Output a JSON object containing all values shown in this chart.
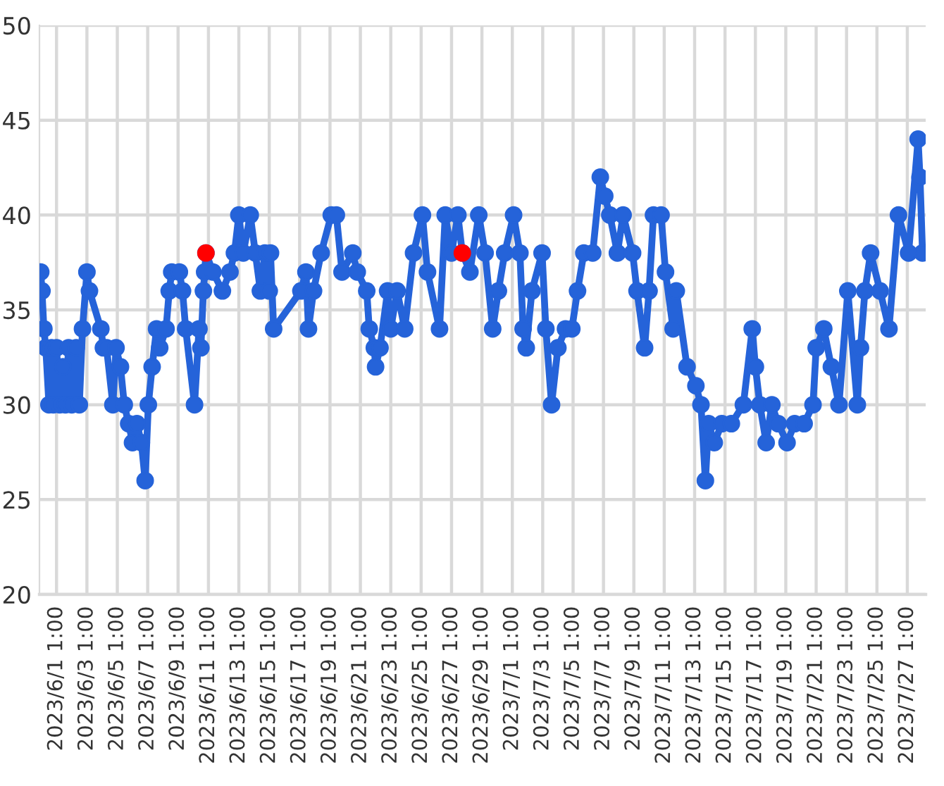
{
  "chart_data": {
    "type": "line",
    "xlim": [
      "2023-05-30T22:00",
      "2023-07-28T06:00"
    ],
    "ylim": [
      20,
      50
    ],
    "yticks": [
      20,
      25,
      30,
      35,
      40,
      45,
      50
    ],
    "xticks": [
      {
        "value": "2023-06-01T01:00",
        "label": "2023/6/1 1:00"
      },
      {
        "value": "2023-06-03T01:00",
        "label": "2023/6/3 1:00"
      },
      {
        "value": "2023-06-05T01:00",
        "label": "2023/6/5 1:00"
      },
      {
        "value": "2023-06-07T01:00",
        "label": "2023/6/7 1:00"
      },
      {
        "value": "2023-06-09T01:00",
        "label": "2023/6/9 1:00"
      },
      {
        "value": "2023-06-11T01:00",
        "label": "2023/6/11 1:00"
      },
      {
        "value": "2023-06-13T01:00",
        "label": "2023/6/13 1:00"
      },
      {
        "value": "2023-06-15T01:00",
        "label": "2023/6/15 1:00"
      },
      {
        "value": "2023-06-17T01:00",
        "label": "2023/6/17 1:00"
      },
      {
        "value": "2023-06-19T01:00",
        "label": "2023/6/19 1:00"
      },
      {
        "value": "2023-06-21T01:00",
        "label": "2023/6/21 1:00"
      },
      {
        "value": "2023-06-23T01:00",
        "label": "2023/6/23 1:00"
      },
      {
        "value": "2023-06-25T01:00",
        "label": "2023/6/25 1:00"
      },
      {
        "value": "2023-06-27T01:00",
        "label": "2023/6/27 1:00"
      },
      {
        "value": "2023-06-29T01:00",
        "label": "2023/6/29 1:00"
      },
      {
        "value": "2023-07-01T01:00",
        "label": "2023/7/1 1:00"
      },
      {
        "value": "2023-07-03T01:00",
        "label": "2023/7/3 1:00"
      },
      {
        "value": "2023-07-05T01:00",
        "label": "2023/7/5 1:00"
      },
      {
        "value": "2023-07-07T01:00",
        "label": "2023/7/7 1:00"
      },
      {
        "value": "2023-07-09T01:00",
        "label": "2023/7/9 1:00"
      },
      {
        "value": "2023-07-11T01:00",
        "label": "2023/7/11 1:00"
      },
      {
        "value": "2023-07-13T01:00",
        "label": "2023/7/13 1:00"
      },
      {
        "value": "2023-07-15T01:00",
        "label": "2023/7/15 1:00"
      },
      {
        "value": "2023-07-17T01:00",
        "label": "2023/7/17 1:00"
      },
      {
        "value": "2023-07-19T01:00",
        "label": "2023/7/19 1:00"
      },
      {
        "value": "2023-07-21T01:00",
        "label": "2023/7/21 1:00"
      },
      {
        "value": "2023-07-23T01:00",
        "label": "2023/7/23 1:00"
      },
      {
        "value": "2023-07-25T01:00",
        "label": "2023/7/25 1:00"
      },
      {
        "value": "2023-07-27T01:00",
        "label": "2023/7/27 1:00"
      }
    ],
    "grid": true,
    "marker": "circle",
    "line_style": "solid",
    "series": [
      {
        "color": "#2563d9",
        "x": [
          "2023-05-31T00:00",
          "2023-05-31T02:00",
          "2023-05-31T05:00",
          "2023-05-31T08:00",
          "2023-05-31T13:00",
          "2023-05-31T17:00",
          "2023-05-31T20:00",
          "2023-06-01T01:00",
          "2023-06-01T06:00",
          "2023-06-01T11:00",
          "2023-06-01T15:00",
          "2023-06-01T20:00",
          "2023-06-02T01:00",
          "2023-06-02T08:00",
          "2023-06-02T13:00",
          "2023-06-02T18:00",
          "2023-06-03T01:00",
          "2023-06-03T05:00",
          "2023-06-03T23:00",
          "2023-06-04T03:00",
          "2023-06-04T08:00",
          "2023-06-04T18:00",
          "2023-06-04T23:00",
          "2023-06-05T06:00",
          "2023-06-05T12:00",
          "2023-06-05T19:00",
          "2023-06-06T01:00",
          "2023-06-06T08:00",
          "2023-06-06T15:00",
          "2023-06-06T21:00",
          "2023-06-07T02:00",
          "2023-06-07T08:00",
          "2023-06-07T15:00",
          "2023-06-07T20:00",
          "2023-06-08T06:00",
          "2023-06-08T11:00",
          "2023-06-08T15:00",
          "2023-06-09T03:00",
          "2023-06-09T08:00",
          "2023-06-09T13:00",
          "2023-06-10T03:00",
          "2023-06-10T10:00",
          "2023-06-10T13:00",
          "2023-06-10T17:00",
          "2023-06-10T19:00",
          "2023-06-10T21:00",
          "2023-06-11T08:00",
          "2023-06-11T23:00",
          "2023-06-12T11:00",
          "2023-06-12T18:00",
          "2023-06-13T01:00",
          "2023-06-13T08:00",
          "2023-06-13T19:00",
          "2023-06-14T03:00",
          "2023-06-14T11:00",
          "2023-06-14T18:00",
          "2023-06-15T01:00",
          "2023-06-15T03:00",
          "2023-06-15T08:00",
          "2023-06-17T03:00",
          "2023-06-17T11:00",
          "2023-06-17T15:00",
          "2023-06-17T23:00",
          "2023-06-18T11:00",
          "2023-06-19T03:00",
          "2023-06-19T11:00",
          "2023-06-19T20:00",
          "2023-06-20T13:00",
          "2023-06-20T20:00",
          "2023-06-21T11:00",
          "2023-06-21T15:00",
          "2023-06-21T23:00",
          "2023-06-22T01:00",
          "2023-06-22T08:00",
          "2023-06-22T20:00",
          "2023-06-23T01:00",
          "2023-06-23T11:00",
          "2023-06-23T23:00",
          "2023-06-24T13:00",
          "2023-06-25T03:00",
          "2023-06-25T11:00",
          "2023-06-26T06:00",
          "2023-06-26T15:00",
          "2023-06-27T01:00",
          "2023-06-27T11:00",
          "2023-06-27T18:00",
          "2023-06-28T06:00",
          "2023-06-28T20:00",
          "2023-06-29T06:00",
          "2023-06-29T18:00",
          "2023-06-30T03:00",
          "2023-06-30T13:00",
          "2023-07-01T03:00",
          "2023-07-01T13:00",
          "2023-07-01T18:00",
          "2023-07-01T23:00",
          "2023-07-02T08:00",
          "2023-07-03T00:00",
          "2023-07-03T06:00",
          "2023-07-03T15:00",
          "2023-07-04T01:00",
          "2023-07-04T13:00",
          "2023-07-04T23:00",
          "2023-07-05T08:00",
          "2023-07-05T18:00",
          "2023-07-06T08:00",
          "2023-07-06T20:00",
          "2023-07-07T03:00",
          "2023-07-07T11:00",
          "2023-07-07T23:00",
          "2023-07-08T08:00",
          "2023-07-08T23:00",
          "2023-07-09T06:00",
          "2023-07-09T18:00",
          "2023-07-10T01:00",
          "2023-07-10T08:00",
          "2023-07-10T20:00",
          "2023-07-11T03:00",
          "2023-07-11T15:00",
          "2023-07-11T20:00",
          "2023-07-12T13:00",
          "2023-07-13T03:00",
          "2023-07-13T11:00",
          "2023-07-13T18:00",
          "2023-07-13T23:00",
          "2023-07-14T08:00",
          "2023-07-14T20:00",
          "2023-07-15T11:00",
          "2023-07-16T06:00",
          "2023-07-16T20:00",
          "2023-07-17T01:00",
          "2023-07-17T08:00",
          "2023-07-17T18:00",
          "2023-07-18T03:00",
          "2023-07-18T13:00",
          "2023-07-19T03:00",
          "2023-07-19T15:00",
          "2023-07-20T06:00",
          "2023-07-20T20:00",
          "2023-07-21T01:00",
          "2023-07-21T13:00",
          "2023-07-22T01:00",
          "2023-07-22T13:00",
          "2023-07-23T03:00",
          "2023-07-23T18:00",
          "2023-07-23T23:00",
          "2023-07-24T06:00",
          "2023-07-24T15:00",
          "2023-07-25T06:00",
          "2023-07-25T20:00",
          "2023-07-26T11:00",
          "2023-07-27T03:00",
          "2023-07-27T18:00",
          "2023-07-27T21:00",
          "2023-07-28T01:00"
        ],
        "values": [
          37,
          36,
          34,
          33,
          30,
          33,
          30,
          33,
          30,
          32,
          30,
          33,
          30,
          33,
          30,
          34,
          37,
          36,
          34,
          33,
          33,
          30,
          33,
          32,
          30,
          29,
          28,
          29,
          28,
          26,
          30,
          32,
          34,
          33,
          34,
          36,
          37,
          37,
          36,
          34,
          30,
          34,
          33,
          36,
          37,
          38,
          37,
          36,
          37,
          38,
          40,
          38,
          40,
          38,
          36,
          38,
          36,
          38,
          34,
          36,
          37,
          34,
          36,
          38,
          40,
          40,
          37,
          38,
          37,
          36,
          34,
          33,
          32,
          33,
          36,
          34,
          36,
          34,
          38,
          40,
          37,
          34,
          40,
          38,
          40,
          38,
          37,
          40,
          38,
          34,
          36,
          38,
          40,
          38,
          34,
          33,
          36,
          38,
          34,
          30,
          33,
          34,
          34,
          36,
          38,
          38,
          42,
          41,
          40,
          38,
          40,
          38,
          36,
          33,
          36,
          40,
          40,
          37,
          34,
          36,
          32,
          31,
          30,
          26,
          29,
          28,
          29,
          29,
          30,
          34,
          32,
          30,
          28,
          30,
          29,
          28,
          29,
          29,
          30,
          33,
          34,
          32,
          30,
          36,
          30,
          33,
          36,
          38,
          36,
          34,
          40,
          38,
          44,
          42,
          38
        ]
      },
      {
        "type": "scatter",
        "color": "#ff0000",
        "x": [
          "2023-06-10T21:00",
          "2023-06-27T18:00"
        ],
        "values": [
          38,
          38
        ]
      }
    ]
  }
}
